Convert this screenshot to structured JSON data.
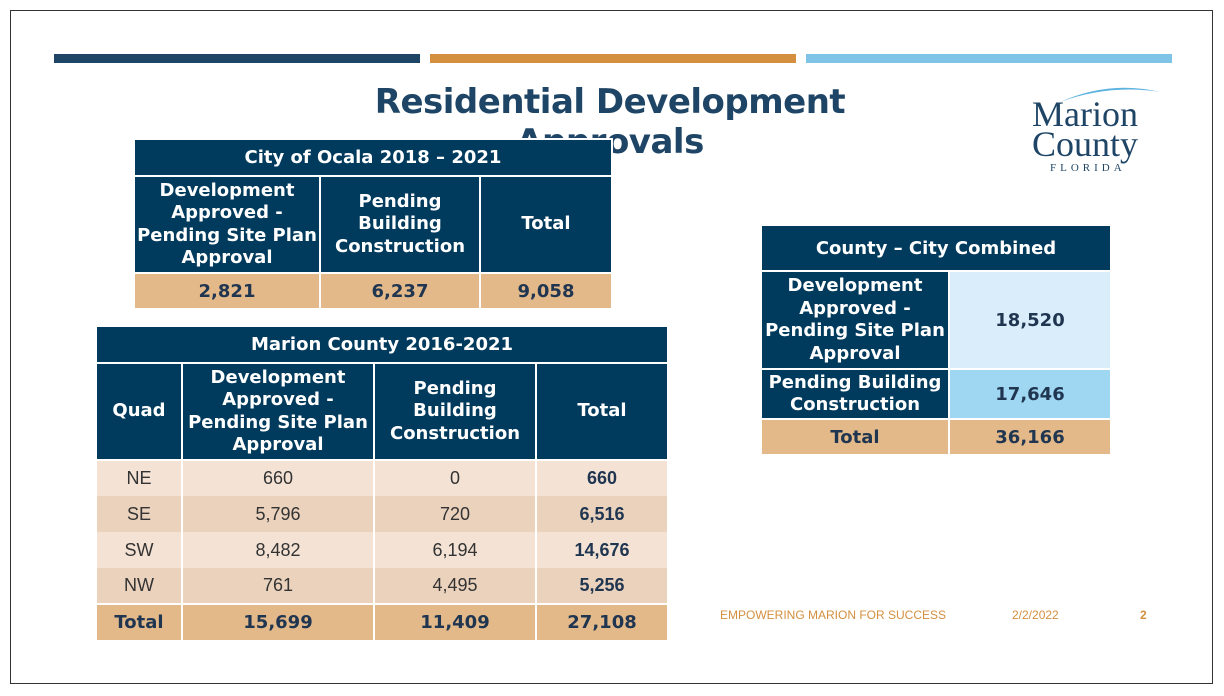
{
  "slide": {
    "title": "Residential Development Approvals",
    "logo": {
      "line1": "Marion",
      "line2": "County",
      "line3": "FLORIDA"
    }
  },
  "ocala": {
    "caption": "City of Ocala 2018 – 2021",
    "headers": [
      "Development Approved - Pending Site Plan Approval",
      "Pending Building Construction",
      "Total"
    ],
    "values": [
      "2,821",
      "6,237",
      "9,058"
    ]
  },
  "marion": {
    "caption": "Marion County 2016-2021",
    "headers": [
      "Quad",
      "Development Approved - Pending Site Plan Approval",
      "Pending Building Construction",
      "Total"
    ],
    "rows": [
      [
        "NE",
        "660",
        "0",
        "660"
      ],
      [
        "SE",
        "5,796",
        "720",
        "6,516"
      ],
      [
        "SW",
        "8,482",
        "6,194",
        "14,676"
      ],
      [
        "NW",
        "761",
        "4,495",
        "5,256"
      ]
    ],
    "total_row": [
      "Total",
      "15,699",
      "11,409",
      "27,108"
    ]
  },
  "combined": {
    "caption": "County – City Combined",
    "rows": [
      [
        "Development Approved - Pending Site Plan Approval",
        "18,520"
      ],
      [
        "Pending Building Construction",
        "17,646"
      ],
      [
        "Total",
        "36,166"
      ]
    ]
  },
  "footer": {
    "tagline": "EMPOWERING MARION FOR SUCCESS",
    "date": "2/2/2022",
    "page": "2"
  },
  "colors": {
    "navy": "#003a5c",
    "orange": "#d48f3f",
    "light_blue": "#7fc3e6",
    "tan": "#e3b98a"
  }
}
